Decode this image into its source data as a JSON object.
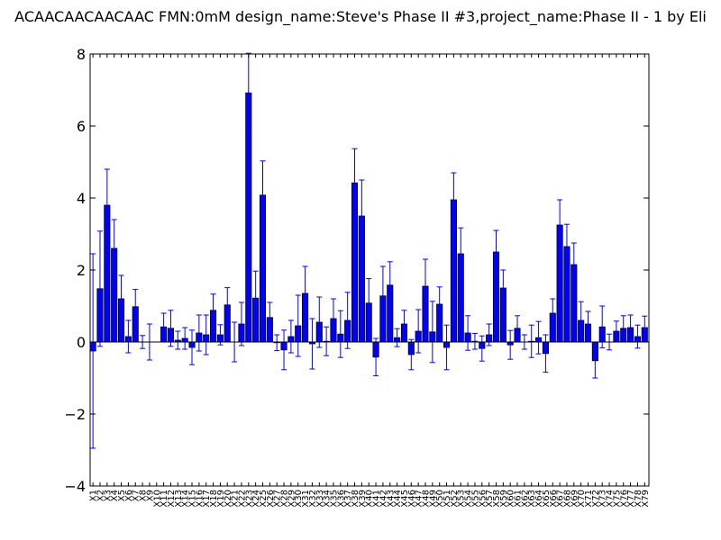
{
  "chart_data": {
    "type": "bar",
    "title": "ACAACAACAACAAC  FMN:0mM  design_name:Steve's Phase II #3,project_name:Phase II - 1 by Eli",
    "xlabel": "",
    "ylabel": "",
    "ylim": [
      -4,
      8
    ],
    "yticks": [
      -4,
      -2,
      0,
      2,
      4,
      6,
      8
    ],
    "ytick_labels": [
      "−4",
      "−2",
      "0",
      "2",
      "4",
      "6",
      "8"
    ],
    "bar_color": "#0000ff",
    "error_color": "#0000ff",
    "categories": [
      "X1",
      "X2",
      "X3",
      "X4",
      "X5",
      "X6",
      "X7",
      "X8",
      "X9",
      "X10",
      "X11",
      "X12",
      "X13",
      "X14",
      "X15",
      "X16",
      "X17",
      "X18",
      "X19",
      "X20",
      "X21",
      "X22",
      "X23",
      "X24",
      "X25",
      "X26",
      "X27",
      "X28",
      "X29",
      "X30",
      "X31",
      "X32",
      "X33",
      "X34",
      "X35",
      "X36",
      "X37",
      "X38",
      "X39",
      "X40",
      "X41",
      "X42",
      "X43",
      "X44",
      "X45",
      "X46",
      "X47",
      "X48",
      "X49",
      "X50",
      "X51",
      "X52",
      "X53",
      "X54",
      "X55",
      "X56",
      "X57",
      "X58",
      "X59",
      "X60",
      "X61",
      "X62",
      "X63",
      "X64",
      "X65",
      "X66",
      "X67",
      "X68",
      "X69",
      "X70",
      "X71",
      "X72",
      "X73",
      "X74",
      "X75",
      "X76",
      "X77",
      "X78",
      "X79"
    ],
    "values": [
      -0.25,
      1.48,
      3.8,
      2.6,
      1.2,
      0.15,
      0.98,
      0.0,
      0.0,
      0.0,
      0.42,
      0.38,
      0.05,
      0.1,
      -0.15,
      0.25,
      0.2,
      0.88,
      0.2,
      1.03,
      0.0,
      0.5,
      6.92,
      1.22,
      4.08,
      0.68,
      -0.02,
      -0.22,
      0.15,
      0.45,
      1.35,
      -0.05,
      0.55,
      0.02,
      0.65,
      0.22,
      0.6,
      4.42,
      3.5,
      1.08,
      -0.42,
      1.28,
      1.58,
      0.12,
      0.5,
      -0.35,
      0.3,
      1.55,
      0.28,
      1.05,
      -0.15,
      3.95,
      2.45,
      0.25,
      0.02,
      -0.18,
      0.2,
      2.5,
      1.5,
      -0.08,
      0.38,
      0.0,
      0.02,
      0.12,
      -0.32,
      0.8,
      3.25,
      2.65,
      2.15,
      0.6,
      0.5,
      -0.52,
      0.42,
      0.0,
      0.3,
      0.38,
      0.4,
      0.15,
      0.4
    ],
    "errors": [
      2.7,
      1.6,
      1.0,
      0.8,
      0.65,
      0.45,
      0.48,
      0.18,
      0.5,
      0.0,
      0.38,
      0.5,
      0.25,
      0.3,
      0.48,
      0.5,
      0.55,
      0.45,
      0.28,
      0.48,
      0.55,
      0.6,
      1.1,
      0.75,
      0.95,
      0.42,
      0.22,
      0.55,
      0.45,
      0.85,
      0.75,
      0.7,
      0.7,
      0.4,
      0.55,
      0.65,
      0.78,
      0.95,
      1.0,
      0.68,
      0.52,
      0.82,
      0.65,
      0.25,
      0.38,
      0.42,
      0.6,
      0.75,
      0.85,
      0.48,
      0.62,
      0.75,
      0.72,
      0.48,
      0.22,
      0.35,
      0.3,
      0.6,
      0.5,
      0.4,
      0.35,
      0.2,
      0.45,
      0.45,
      0.52,
      0.4,
      0.7,
      0.62,
      0.6,
      0.52,
      0.35,
      0.48,
      0.58,
      0.22,
      0.28,
      0.35,
      0.35,
      0.32,
      0.32
    ]
  }
}
